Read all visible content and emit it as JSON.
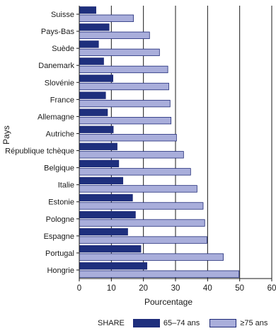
{
  "chart_data": {
    "type": "bar",
    "orientation": "horizontal",
    "categories": [
      "Suisse",
      "Pays-Bas",
      "Suède",
      "Danemark",
      "Slovénie",
      "France",
      "Allemagne",
      "Autriche",
      "République tchèque",
      "Belgique",
      "Italie",
      "Estonie",
      "Pologne",
      "Espagne",
      "Portugal",
      "Hongrie"
    ],
    "series": [
      {
        "name": "65–74 ans",
        "color": "#1e2f7d",
        "values": [
          5.2,
          9.3,
          6.0,
          7.6,
          10.5,
          8.2,
          8.8,
          10.6,
          11.8,
          12.3,
          13.6,
          16.6,
          17.5,
          15.1,
          19.2,
          21.1
        ]
      },
      {
        "name": "≥75 ans",
        "color": "#a9aedb",
        "values": [
          16.9,
          21.9,
          25.0,
          27.6,
          27.9,
          28.3,
          28.6,
          30.3,
          32.5,
          34.7,
          36.7,
          38.6,
          39.1,
          39.8,
          44.9,
          49.8
        ]
      }
    ],
    "xlabel": "Pourcentage",
    "ylabel": "Pays",
    "xlim": [
      0,
      60
    ],
    "xticks": [
      0,
      10,
      20,
      30,
      40,
      50,
      60
    ],
    "grid": "vertical lines at tick values",
    "legend_title": "SHARE",
    "legend_position": "bottom"
  }
}
